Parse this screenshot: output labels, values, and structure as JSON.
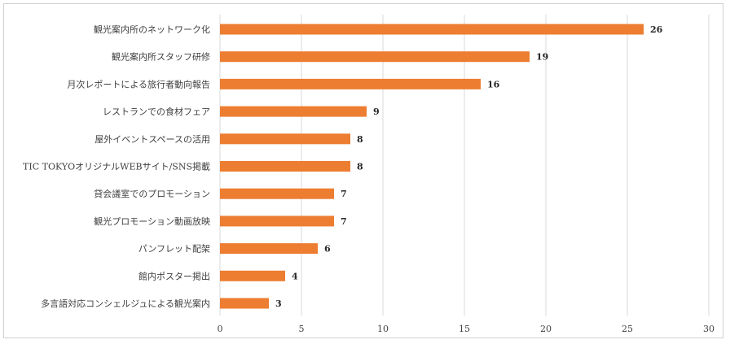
{
  "chart_data": {
    "type": "bar",
    "orientation": "horizontal",
    "categories": [
      "観光案内所のネットワーク化",
      "観光案内所スタッフ研修",
      "月次レポートによる旅行者動向報告",
      "レストランでの食材フェア",
      "屋外イベントスペースの活用",
      "TIC TOKYOオリジナルWEBサイト/SNS掲載",
      "貸会議室でのプロモーション",
      "観光プロモーション動画放映",
      "パンフレット配架",
      "館内ポスター掲出",
      "多言語対応コンシェルジュによる観光案内"
    ],
    "values": [
      26,
      19,
      16,
      9,
      8,
      8,
      7,
      7,
      6,
      4,
      3
    ],
    "xlim": [
      0,
      30
    ],
    "xticks": [
      0,
      5,
      10,
      15,
      20,
      25,
      30
    ],
    "grid": true,
    "data_labels": true,
    "bar_color": "#ed7d31",
    "grid_color": "#d9d9d9"
  }
}
